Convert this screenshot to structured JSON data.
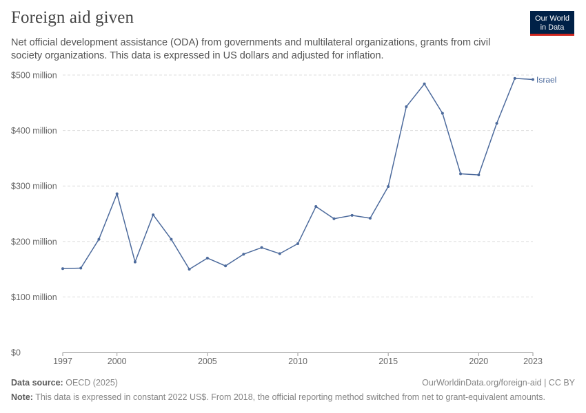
{
  "header": {
    "title": "Foreign aid given",
    "subtitle": "Net official development assistance (ODA) from governments and multilateral organizations, grants from civil society organizations. This data is expressed in US dollars and adjusted for inflation."
  },
  "logo": {
    "line1": "Our World",
    "line2": "in Data"
  },
  "footer": {
    "source_label": "Data source:",
    "source_value": "OECD (2025)",
    "url": "OurWorldinData.org/foreign-aid | CC BY",
    "note_label": "Note:",
    "note_value": "This data is expressed in constant 2022 US$. From 2018, the official reporting method switched from net to grant-equivalent amounts."
  },
  "colors": {
    "series": "#4c6a9c",
    "grid": "#dddddd",
    "axis_text": "#666666",
    "brand": "#002147",
    "brand_accent": "#ce261e"
  },
  "chart_data": {
    "type": "line",
    "title": "Foreign aid given",
    "xlabel": "",
    "ylabel": "",
    "xlim": [
      1997,
      2023
    ],
    "ylim": [
      0,
      500
    ],
    "y_unit": "million US$ (constant 2022)",
    "x_ticks": [
      "1997",
      "2000",
      "2005",
      "2010",
      "2015",
      "2020",
      "2023"
    ],
    "y_ticks": [
      {
        "value": 0,
        "label": "$0"
      },
      {
        "value": 100,
        "label": "$100 million"
      },
      {
        "value": 200,
        "label": "$200 million"
      },
      {
        "value": 300,
        "label": "$300 million"
      },
      {
        "value": 400,
        "label": "$400 million"
      },
      {
        "value": 500,
        "label": "$500 million"
      }
    ],
    "grid": true,
    "legend": "line-end label",
    "series": [
      {
        "name": "Israel",
        "x": [
          1997,
          1998,
          1999,
          2000,
          2001,
          2002,
          2003,
          2004,
          2005,
          2006,
          2007,
          2008,
          2009,
          2010,
          2011,
          2012,
          2013,
          2014,
          2015,
          2016,
          2017,
          2018,
          2019,
          2020,
          2021,
          2022,
          2023
        ],
        "y": [
          151,
          152,
          204,
          286,
          163,
          248,
          204,
          150,
          170,
          156,
          177,
          189,
          178,
          196,
          263,
          241,
          247,
          242,
          299,
          443,
          484,
          431,
          322,
          320,
          413,
          494,
          492
        ]
      }
    ]
  }
}
